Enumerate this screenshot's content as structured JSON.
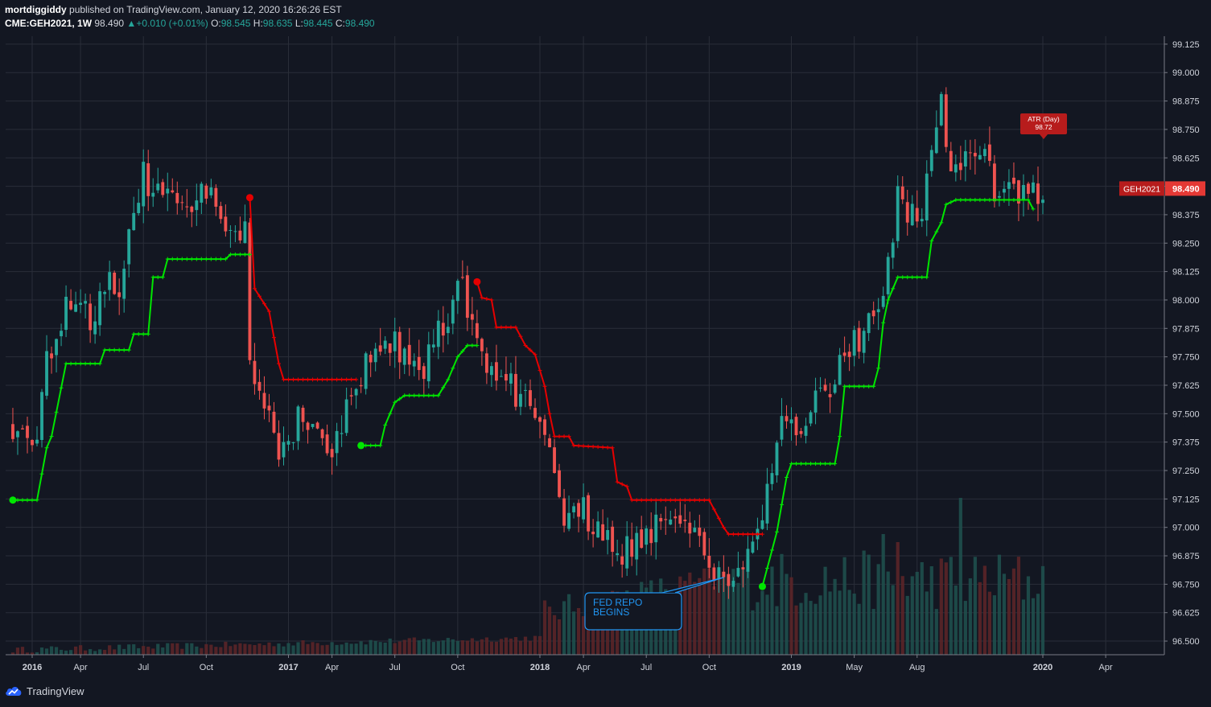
{
  "header": {
    "author": "mortdiggiddy",
    "published": "published on TradingView.com, January 12, 2020 16:26:26 EST",
    "symbol": "CME:GEH2021, 1W",
    "last": "98.490",
    "change_arrow": "▲",
    "change": "+0.010 (+0.01%)",
    "o_label": "O:",
    "o": "98.545",
    "h_label": "H:",
    "h": "98.635",
    "l_label": "L:",
    "l": "98.445",
    "c_label": "C:",
    "c": "98.490"
  },
  "footer": {
    "brand": "TradingView",
    "logo_icon": "tradingview-cloud-icon"
  },
  "colors": {
    "background": "#131722",
    "up": "#26a69a",
    "down": "#ef5350",
    "stop_up": "#00e600",
    "stop_down": "#e60000",
    "grid": "#2a2e39"
  },
  "chart_data": {
    "type": "candlestick",
    "title": "",
    "xlabel": "",
    "ylabel": "",
    "ylim": [
      96.44,
      99.16
    ],
    "yticks": [
      "99.125",
      "99.000",
      "98.875",
      "98.750",
      "98.625",
      "98.500",
      "98.375",
      "98.250",
      "98.125",
      "98.000",
      "97.875",
      "97.750",
      "97.625",
      "97.500",
      "97.375",
      "97.250",
      "97.125",
      "97.000",
      "96.875",
      "96.750",
      "96.625",
      "96.500"
    ],
    "xticks": [
      {
        "label": "2016",
        "week": 4,
        "bold": true
      },
      {
        "label": "Apr",
        "week": 14
      },
      {
        "label": "Jul",
        "week": 27
      },
      {
        "label": "Oct",
        "week": 40
      },
      {
        "label": "2017",
        "week": 57,
        "bold": true
      },
      {
        "label": "Apr",
        "week": 66
      },
      {
        "label": "Jul",
        "week": 79
      },
      {
        "label": "Oct",
        "week": 92
      },
      {
        "label": "2018",
        "week": 109,
        "bold": true
      },
      {
        "label": "Apr",
        "week": 118
      },
      {
        "label": "Jul",
        "week": 131
      },
      {
        "label": "Oct",
        "week": 144
      },
      {
        "label": "2019",
        "week": 161,
        "bold": true
      },
      {
        "label": "May",
        "week": 174
      },
      {
        "label": "Aug",
        "week": 187
      },
      {
        "label": "2020",
        "week": 213,
        "bold": true
      },
      {
        "label": "Apr",
        "week": 226
      }
    ],
    "price_path": [
      [
        0,
        97.45
      ],
      [
        2,
        97.4
      ],
      [
        5,
        97.38
      ],
      [
        7,
        97.75
      ],
      [
        11,
        97.95
      ],
      [
        13,
        98.05
      ],
      [
        16,
        97.9
      ],
      [
        19,
        98.1
      ],
      [
        22,
        98.05
      ],
      [
        25,
        98.35
      ],
      [
        27,
        98.55
      ],
      [
        30,
        98.45
      ],
      [
        33,
        98.5
      ],
      [
        36,
        98.42
      ],
      [
        39,
        98.48
      ],
      [
        42,
        98.4
      ],
      [
        45,
        98.35
      ],
      [
        48,
        98.32
      ],
      [
        49,
        97.75
      ],
      [
        51,
        97.55
      ],
      [
        53,
        97.45
      ],
      [
        55,
        97.25
      ],
      [
        57,
        97.4
      ],
      [
        60,
        97.5
      ],
      [
        63,
        97.45
      ],
      [
        66,
        97.35
      ],
      [
        68,
        97.4
      ],
      [
        70,
        97.6
      ],
      [
        73,
        97.7
      ],
      [
        76,
        97.8
      ],
      [
        79,
        97.8
      ],
      [
        82,
        97.75
      ],
      [
        84,
        97.65
      ],
      [
        87,
        97.8
      ],
      [
        90,
        97.95
      ],
      [
        93,
        98.05
      ],
      [
        94,
        97.9
      ],
      [
        96,
        97.8
      ],
      [
        98,
        97.7
      ],
      [
        101,
        97.65
      ],
      [
        104,
        97.6
      ],
      [
        107,
        97.55
      ],
      [
        110,
        97.45
      ],
      [
        112,
        97.25
      ],
      [
        114,
        97.05
      ],
      [
        117,
        97.1
      ],
      [
        120,
        97.0
      ],
      [
        123,
        96.95
      ],
      [
        126,
        96.9
      ],
      [
        129,
        96.95
      ],
      [
        132,
        97.0
      ],
      [
        135,
        97.05
      ],
      [
        138,
        97.05
      ],
      [
        141,
        97.0
      ],
      [
        144,
        96.85
      ],
      [
        147,
        96.75
      ],
      [
        150,
        96.8
      ],
      [
        153,
        96.95
      ],
      [
        155,
        97.1
      ],
      [
        157,
        97.3
      ],
      [
        159,
        97.45
      ],
      [
        161,
        97.5
      ],
      [
        163,
        97.45
      ],
      [
        166,
        97.55
      ],
      [
        169,
        97.6
      ],
      [
        171,
        97.75
      ],
      [
        173,
        97.8
      ],
      [
        175,
        97.8
      ],
      [
        178,
        97.95
      ],
      [
        181,
        98.15
      ],
      [
        183,
        98.45
      ],
      [
        185,
        98.35
      ],
      [
        188,
        98.4
      ],
      [
        190,
        98.7
      ],
      [
        192,
        98.85
      ],
      [
        194,
        98.55
      ],
      [
        197,
        98.6
      ],
      [
        200,
        98.65
      ],
      [
        203,
        98.5
      ],
      [
        206,
        98.5
      ],
      [
        209,
        98.45
      ],
      [
        211,
        98.48
      ],
      [
        213,
        98.5
      ]
    ],
    "stop_segments": [
      {
        "side": "long",
        "points": [
          [
            0,
            97.12
          ],
          [
            5,
            97.12
          ],
          [
            7,
            97.35
          ],
          [
            8,
            97.4
          ],
          [
            11,
            97.72
          ],
          [
            18,
            97.72
          ],
          [
            19,
            97.78
          ],
          [
            24,
            97.78
          ],
          [
            25,
            97.85
          ],
          [
            28,
            97.85
          ],
          [
            29,
            98.1
          ],
          [
            31,
            98.1
          ],
          [
            32,
            98.18
          ],
          [
            44,
            98.18
          ],
          [
            45,
            98.2
          ],
          [
            49,
            98.2
          ]
        ]
      },
      {
        "side": "short",
        "points": [
          [
            49,
            98.45
          ],
          [
            50,
            98.05
          ],
          [
            53,
            97.95
          ],
          [
            55,
            97.72
          ],
          [
            56,
            97.65
          ],
          [
            71,
            97.65
          ]
        ]
      },
      {
        "side": "long",
        "points": [
          [
            72,
            97.36
          ],
          [
            76,
            97.36
          ],
          [
            77,
            97.45
          ],
          [
            79,
            97.55
          ],
          [
            81,
            97.58
          ],
          [
            88,
            97.58
          ],
          [
            90,
            97.65
          ],
          [
            92,
            97.75
          ],
          [
            94,
            97.8
          ],
          [
            96,
            97.8
          ]
        ]
      },
      {
        "side": "short",
        "points": [
          [
            96,
            98.08
          ],
          [
            97,
            98.01
          ],
          [
            99,
            98.0
          ],
          [
            100,
            97.88
          ],
          [
            104,
            97.88
          ],
          [
            106,
            97.8
          ],
          [
            108,
            97.76
          ],
          [
            110,
            97.62
          ],
          [
            111,
            97.5
          ],
          [
            112,
            97.4
          ],
          [
            115,
            97.4
          ],
          [
            116,
            97.36
          ],
          [
            124,
            97.35
          ],
          [
            125,
            97.2
          ],
          [
            127,
            97.18
          ],
          [
            128,
            97.12
          ],
          [
            144,
            97.12
          ],
          [
            145,
            97.08
          ],
          [
            147,
            97.0
          ],
          [
            148,
            96.97
          ],
          [
            155,
            96.97
          ]
        ]
      },
      {
        "side": "long",
        "points": [
          [
            155,
            96.74
          ],
          [
            157,
            96.9
          ],
          [
            158,
            96.98
          ],
          [
            159,
            97.1
          ],
          [
            160,
            97.22
          ],
          [
            161,
            97.28
          ],
          [
            170,
            97.28
          ],
          [
            171,
            97.4
          ],
          [
            172,
            97.62
          ],
          [
            178,
            97.62
          ],
          [
            179,
            97.7
          ],
          [
            180,
            97.9
          ],
          [
            181,
            98.0
          ],
          [
            182,
            98.05
          ],
          [
            183,
            98.1
          ],
          [
            189,
            98.1
          ],
          [
            190,
            98.26
          ],
          [
            192,
            98.34
          ],
          [
            193,
            98.42
          ],
          [
            195,
            98.44
          ],
          [
            210,
            98.44
          ],
          [
            211,
            98.4
          ]
        ]
      }
    ],
    "annotation": {
      "line1": "FED REPO",
      "line2": "BEGINS",
      "week": 147,
      "price": 96.78
    },
    "atr_label": {
      "line1": "ATR (Day)",
      "line2": "98.72",
      "week": 212,
      "price": 98.72
    },
    "price_tag": {
      "symbol": "GEH2021",
      "value": "98.490",
      "price": 98.49
    }
  }
}
